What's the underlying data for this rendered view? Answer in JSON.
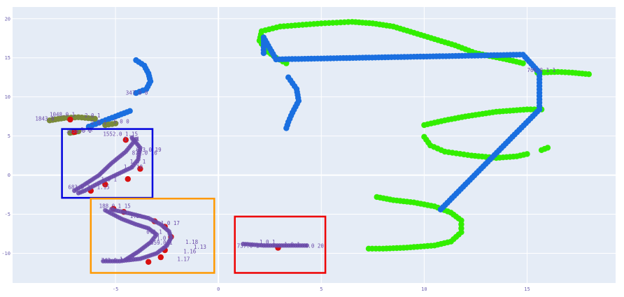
{
  "chart_data": {
    "type": "scatter",
    "xlim": [
      -10,
      19.3
    ],
    "ylim": [
      -13.8,
      21.5
    ],
    "xticks": [
      -5,
      0,
      5,
      10,
      15
    ],
    "yticks": [
      -10,
      -5,
      0,
      5,
      10,
      15,
      20
    ],
    "grid": true,
    "colors": {
      "plot_bg": "#e5ecf6",
      "grid": "#ffffff",
      "green": "#33ee00",
      "blue": "#1a6fe0",
      "red": "#d81010",
      "purple": "#6a4aa8",
      "olive": "#7a8a3a",
      "box_blue": "#0000dd",
      "box_orange": "#ff9900",
      "box_red": "#ee0000"
    },
    "series": [
      {
        "color": "green",
        "curves": [
          [
            [
              2.0,
              17.2
            ],
            [
              2.1,
              18.4
            ],
            [
              3.0,
              19.0
            ],
            [
              5.0,
              19.4
            ],
            [
              6.5,
              19.6
            ],
            [
              7.5,
              19.4
            ],
            [
              8.5,
              19.0
            ],
            [
              10.0,
              17.8
            ],
            [
              11.5,
              16.6
            ],
            [
              12.5,
              15.6
            ],
            [
              14.0,
              14.8
            ],
            [
              14.8,
              14.3
            ]
          ],
          [
            [
              2.0,
              17.2
            ],
            [
              2.3,
              16.0
            ],
            [
              2.8,
              15.0
            ],
            [
              3.3,
              14.3
            ]
          ],
          [
            [
              15.5,
              13.1
            ],
            [
              16.5,
              13.2
            ],
            [
              17.2,
              13.1
            ],
            [
              18.0,
              12.9
            ]
          ],
          [
            [
              10.0,
              6.4
            ],
            [
              11.0,
              7.0
            ],
            [
              12.0,
              7.5
            ],
            [
              13.5,
              8.1
            ],
            [
              15.0,
              8.4
            ],
            [
              15.7,
              8.4
            ]
          ],
          [
            [
              10.0,
              4.9
            ],
            [
              10.3,
              3.8
            ],
            [
              11.0,
              3.0
            ],
            [
              12.3,
              2.5
            ],
            [
              13.5,
              2.2
            ],
            [
              14.5,
              2.4
            ],
            [
              15.0,
              2.7
            ]
          ],
          [
            [
              15.7,
              3.2
            ],
            [
              16.0,
              3.5
            ]
          ],
          [
            [
              7.7,
              -2.8
            ],
            [
              8.5,
              -3.2
            ],
            [
              9.5,
              -3.5
            ],
            [
              10.5,
              -4.0
            ],
            [
              11.3,
              -4.8
            ],
            [
              11.8,
              -5.8
            ],
            [
              11.8,
              -7.3
            ],
            [
              11.3,
              -8.5
            ],
            [
              10.5,
              -9.0
            ],
            [
              9.0,
              -9.3
            ],
            [
              8.0,
              -9.4
            ],
            [
              7.3,
              -9.4
            ]
          ]
        ]
      },
      {
        "color": "blue",
        "curves": [
          [
            [
              -4.0,
              14.7
            ],
            [
              -3.6,
              14.0
            ],
            [
              -3.4,
              13.0
            ],
            [
              -3.3,
              12.0
            ],
            [
              -3.5,
              11.0
            ],
            [
              -4.0,
              10.5
            ]
          ],
          [
            [
              -4.3,
              8.2
            ],
            [
              -5.0,
              7.5
            ],
            [
              -5.8,
              6.7
            ],
            [
              -6.3,
              6.2
            ]
          ],
          [
            [
              3.4,
              12.5
            ],
            [
              3.8,
              11.0
            ],
            [
              3.9,
              9.5
            ],
            [
              3.6,
              8.0
            ],
            [
              3.4,
              6.8
            ],
            [
              3.3,
              6.0
            ]
          ],
          [
            [
              2.2,
              15.6
            ],
            [
              2.2,
              17.6
            ],
            [
              2.8,
              14.8
            ],
            [
              14.8,
              15.4
            ],
            [
              15.6,
              13.1
            ],
            [
              15.6,
              8.4
            ],
            [
              10.8,
              -4.4
            ]
          ]
        ]
      },
      {
        "color": "olive",
        "curves": [
          [
            [
              -8.2,
              7.0
            ],
            [
              -7.5,
              7.3
            ],
            [
              -6.8,
              7.4
            ],
            [
              -6.0,
              7.2
            ]
          ],
          [
            [
              -7.2,
              5.4
            ],
            [
              -6.8,
              5.6
            ]
          ],
          [
            [
              -5.5,
              6.4
            ],
            [
              -5.0,
              6.6
            ]
          ]
        ]
      },
      {
        "color": "red",
        "points": [
          [
            -7.2,
            7.1
          ],
          [
            -7.0,
            5.5
          ],
          [
            -4.5,
            4.5
          ],
          [
            -3.8,
            0.8
          ],
          [
            -4.4,
            -0.5
          ],
          [
            -5.5,
            -1.2
          ],
          [
            -6.2,
            -2.0
          ],
          [
            -5.1,
            -4.3
          ],
          [
            -4.6,
            -4.7
          ],
          [
            -3.1,
            -5.9
          ],
          [
            -2.6,
            -6.6
          ],
          [
            -2.3,
            -7.9
          ],
          [
            -2.6,
            -9.6
          ],
          [
            -2.8,
            -10.5
          ],
          [
            -3.4,
            -11.1
          ],
          [
            2.9,
            -9.3
          ]
        ]
      },
      {
        "color": "purple",
        "curves": [
          [
            [
              -4.2,
              4.8
            ],
            [
              -3.8,
              3.5
            ],
            [
              -3.9,
              2.0
            ],
            [
              -4.2,
              1.0
            ],
            [
              -5.0,
              0.0
            ],
            [
              -5.8,
              -1.0
            ],
            [
              -6.5,
              -2.0
            ],
            [
              -6.8,
              -2.3
            ]
          ],
          [
            [
              -4.0,
              4.6
            ],
            [
              -4.5,
              3.0
            ],
            [
              -5.2,
              1.5
            ],
            [
              -5.8,
              0.0
            ],
            [
              -6.5,
              -1.2
            ],
            [
              -7.0,
              -2.0
            ]
          ],
          [
            [
              -5.2,
              -4.4
            ],
            [
              -4.3,
              -4.9
            ],
            [
              -3.4,
              -5.5
            ],
            [
              -2.8,
              -6.3
            ],
            [
              -2.4,
              -7.2
            ],
            [
              -2.3,
              -8.0
            ],
            [
              -2.5,
              -9.0
            ],
            [
              -3.0,
              -10.0
            ],
            [
              -3.8,
              -10.7
            ],
            [
              -4.8,
              -11.0
            ],
            [
              -5.6,
              -11.0
            ]
          ],
          [
            [
              -5.5,
              -4.5
            ],
            [
              -4.7,
              -5.6
            ],
            [
              -4.0,
              -6.3
            ],
            [
              -3.4,
              -6.8
            ],
            [
              -3.0,
              -7.6
            ],
            [
              -3.3,
              -8.6
            ],
            [
              -3.9,
              -9.8
            ],
            [
              -4.5,
              -10.8
            ]
          ],
          [
            [
              1.2,
              -8.8
            ],
            [
              2.2,
              -9.0
            ],
            [
              3.3,
              -9.0
            ],
            [
              4.3,
              -9.0
            ]
          ]
        ]
      }
    ],
    "point_labels": [
      {
        "text": "347.0 0",
        "x": -4.5,
        "y": 10.3
      },
      {
        "text": "1843.0",
        "x": -8.9,
        "y": 7.0
      },
      {
        "text": "1048.0 1",
        "x": -8.2,
        "y": 7.5
      },
      {
        "text": "2.0 1",
        "x": -6.5,
        "y": 7.4
      },
      {
        "text": "1058.0 1",
        "x": -7.4,
        "y": 5.4
      },
      {
        "text": "0.12",
        "x": -6.7,
        "y": 5.6
      },
      {
        "text": "2.0 1",
        "x": -6.2,
        "y": 6.5
      },
      {
        "text": "5.0 0",
        "x": -5.1,
        "y": 6.6
      },
      {
        "text": "1552.0 1.15",
        "x": -5.6,
        "y": 5.0
      },
      {
        "text": "1.0 1",
        "x": -4.6,
        "y": 4.4
      },
      {
        "text": "603.0 19",
        "x": -4.0,
        "y": 3.0
      },
      {
        "text": "877.0 16",
        "x": -4.2,
        "y": 2.6
      },
      {
        "text": "1.0 1",
        "x": -4.3,
        "y": 1.5
      },
      {
        "text": "1.0 10",
        "x": -4.6,
        "y": 0.8
      },
      {
        "text": "1.0 1",
        "x": -5.7,
        "y": -0.8
      },
      {
        "text": "683.0 1",
        "x": -7.3,
        "y": -1.8
      },
      {
        "text": "1.15",
        "x": -5.9,
        "y": -1.8
      },
      {
        "text": "188.0 1 15",
        "x": -5.8,
        "y": -4.2
      },
      {
        "text": "1.5",
        "x": -4.3,
        "y": -5.5
      },
      {
        "text": "1.0 17",
        "x": -2.8,
        "y": -6.4
      },
      {
        "text": "0.0 1",
        "x": -3.5,
        "y": -7.5
      },
      {
        "text": "1.0 1",
        "x": -3.0,
        "y": -8.3
      },
      {
        "text": "1.18",
        "x": -1.6,
        "y": -8.8
      },
      {
        "text": "659.0 1",
        "x": -3.3,
        "y": -8.9
      },
      {
        "text": "1.13",
        "x": -1.2,
        "y": -9.4
      },
      {
        "text": "1.16",
        "x": -1.7,
        "y": -10.0
      },
      {
        "text": "743.0 1",
        "x": -5.7,
        "y": -11.1
      },
      {
        "text": "1.0 1",
        "x": -4.8,
        "y": -11.0
      },
      {
        "text": "1.17",
        "x": -2.0,
        "y": -11.0
      },
      {
        "text": "737.0 1",
        "x": 0.9,
        "y": -9.3
      },
      {
        "text": "1.0 1",
        "x": 2.0,
        "y": -8.8
      },
      {
        "text": "1.0 1",
        "x": 3.2,
        "y": -9.1
      },
      {
        "text": "4.0 20",
        "x": 4.2,
        "y": -9.3
      },
      {
        "text": "766.0 1 1",
        "x": 15.0,
        "y": 13.2
      }
    ],
    "boxes": [
      {
        "color": "box_blue",
        "x0": -7.6,
        "y0": -2.9,
        "x1": -3.2,
        "y1": 5.9
      },
      {
        "color": "box_orange",
        "x0": -6.2,
        "y0": -12.5,
        "x1": -0.2,
        "y1": -3.0
      },
      {
        "color": "box_red",
        "x0": 0.8,
        "y0": -12.5,
        "x1": 5.2,
        "y1": -5.3
      }
    ]
  }
}
